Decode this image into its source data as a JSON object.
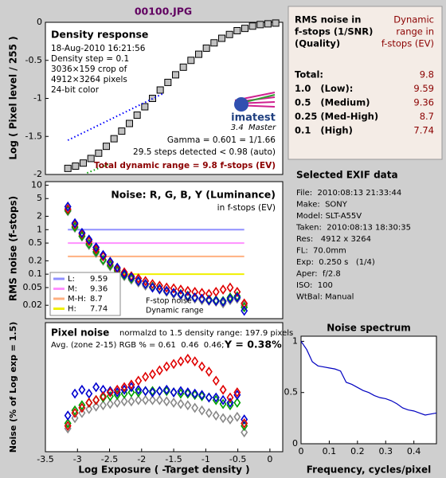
{
  "file_title": "00100.JPG",
  "chart_data": [
    {
      "type": "line",
      "title": "Density response",
      "ylabel": "Log ( Pixel level / 255 )",
      "annotations": [
        "18-Aug-2010 16:21:56",
        "Density step = 0.1",
        "3036×159 crop of",
        "4912×3264 pixels",
        "24-bit color",
        "Gamma = 0.601 = 1/1.66",
        "29.5 steps detected < 0.98 (auto)"
      ],
      "logo": "imatest",
      "logo_caption": "3.4  Master",
      "footer": "Total dynamic range = 9.8 f-stops (EV)",
      "xlim": [
        -3.5,
        0.2
      ],
      "ylim": [
        -2,
        0
      ],
      "yticks": [
        0,
        -0.5,
        -1,
        -1.5,
        -2
      ],
      "x": [
        -3.15,
        -3.03,
        -2.91,
        -2.79,
        -2.67,
        -2.55,
        -2.43,
        -2.31,
        -2.19,
        -2.07,
        -1.95,
        -1.83,
        -1.71,
        -1.59,
        -1.47,
        -1.35,
        -1.23,
        -1.11,
        -0.99,
        -0.87,
        -0.75,
        -0.63,
        -0.51,
        -0.39,
        -0.27,
        -0.15,
        -0.03,
        0.09
      ],
      "series": [
        {
          "color": "#c0c0c0",
          "marker": "square",
          "values": [
            -1.92,
            -1.89,
            -1.85,
            -1.79,
            -1.72,
            -1.63,
            -1.53,
            -1.43,
            -1.33,
            -1.22,
            -1.11,
            -1.0,
            -0.89,
            -0.79,
            -0.69,
            -0.59,
            -0.5,
            -0.42,
            -0.34,
            -0.27,
            -0.21,
            -0.16,
            -0.11,
            -0.08,
            -0.05,
            -0.03,
            -0.02,
            -0.01
          ]
        },
        {
          "color": "#0000ff",
          "line": "dotted",
          "x": [
            -3.15,
            -1.65
          ],
          "values": [
            -1.55,
            -0.93
          ]
        },
        {
          "color": "#00a000",
          "line": "dotted",
          "x": [
            -2.85,
            -2.5
          ],
          "values": [
            -1.98,
            -1.86
          ]
        }
      ]
    },
    {
      "type": "line",
      "title": "Noise: R, G, B, Y (Luminance)",
      "subtitle": "in f-stops (EV)",
      "ylabel": "RMS noise (f-stops)",
      "annotations": [
        "F-stop noise",
        "Dynamic range"
      ],
      "log_y": true,
      "xlim": [
        -3.5,
        0.2
      ],
      "ylim": [
        0.01,
        12
      ],
      "yticks": [
        10,
        5,
        2,
        1,
        0.5,
        0.2,
        0.1,
        0.05,
        0.02
      ],
      "x": [
        -3.15,
        -3.04,
        -2.93,
        -2.82,
        -2.71,
        -2.6,
        -2.49,
        -2.38,
        -2.27,
        -2.16,
        -2.05,
        -1.94,
        -1.83,
        -1.72,
        -1.61,
        -1.5,
        -1.39,
        -1.28,
        -1.17,
        -1.06,
        -0.95,
        -0.84,
        -0.73,
        -0.62,
        -0.51,
        -0.4
      ],
      "reference_lines": [
        {
          "name": "L:",
          "dynamic_range": "9.59",
          "value": 1,
          "color": "#9090ff"
        },
        {
          "name": "M:",
          "dynamic_range": "9.36",
          "value": 0.5,
          "color": "#ff90ff"
        },
        {
          "name": "M-H:",
          "dynamic_range": "8.7",
          "value": 0.25,
          "color": "#ffb080"
        },
        {
          "name": "H:",
          "dynamic_range": "7.74",
          "value": 0.1,
          "color": "#f0f000"
        }
      ],
      "series": [
        {
          "color": "#888888",
          "marker": "diamond",
          "values": [
            2.6,
            1.1,
            0.7,
            0.45,
            0.3,
            0.2,
            0.15,
            0.11,
            0.09,
            0.075,
            0.065,
            0.055,
            0.05,
            0.045,
            0.04,
            0.036,
            0.034,
            0.03,
            0.028,
            0.026,
            0.025,
            0.024,
            0.022,
            0.026,
            0.028,
            0.02
          ]
        },
        {
          "color": "#00a000",
          "marker": "diamond",
          "values": [
            2.7,
            1.15,
            0.72,
            0.48,
            0.32,
            0.21,
            0.16,
            0.12,
            0.095,
            0.08,
            0.07,
            0.06,
            0.052,
            0.047,
            0.042,
            0.038,
            0.036,
            0.033,
            0.03,
            0.028,
            0.027,
            0.026,
            0.025,
            0.03,
            0.032,
            0.018
          ]
        },
        {
          "color": "#e00000",
          "marker": "diamond",
          "values": [
            2.9,
            1.3,
            0.8,
            0.55,
            0.36,
            0.25,
            0.18,
            0.13,
            0.11,
            0.09,
            0.08,
            0.07,
            0.06,
            0.055,
            0.05,
            0.048,
            0.045,
            0.042,
            0.04,
            0.038,
            0.036,
            0.04,
            0.045,
            0.05,
            0.04,
            0.022
          ]
        },
        {
          "color": "#0000d0",
          "marker": "diamond",
          "values": [
            3.3,
            1.4,
            0.85,
            0.6,
            0.4,
            0.27,
            0.19,
            0.14,
            0.1,
            0.085,
            0.07,
            0.06,
            0.05,
            0.046,
            0.042,
            0.038,
            0.035,
            0.032,
            0.03,
            0.028,
            0.026,
            0.025,
            0.024,
            0.028,
            0.03,
            0.015
          ]
        }
      ]
    },
    {
      "type": "line",
      "title": "Pixel noise",
      "subtitle": "normalzd to 1.5 density range: 197.9 pixels",
      "annotations": [
        "Avg. (zone 2-15) RGB % = 0.61  0.46  0.46;",
        "Y = 0.38%"
      ],
      "ylabel": "Noise (% of Log exp = 1.5)",
      "xlabel": "Log Exposure ( -Target density )",
      "xlim": [
        -3.5,
        0.2
      ],
      "ylim": [
        0,
        1
      ],
      "xticks": [
        -3.5,
        -3,
        -2.5,
        -2,
        -1.5,
        -1,
        -0.5,
        0
      ],
      "x": [
        -3.15,
        -3.04,
        -2.93,
        -2.82,
        -2.71,
        -2.6,
        -2.49,
        -2.38,
        -2.27,
        -2.16,
        -2.05,
        -1.94,
        -1.83,
        -1.72,
        -1.61,
        -1.5,
        -1.39,
        -1.28,
        -1.17,
        -1.06,
        -0.95,
        -0.84,
        -0.73,
        -0.62,
        -0.51,
        -0.4
      ],
      "series": [
        {
          "color": "#888888",
          "marker": "diamond",
          "values": [
            0.18,
            0.26,
            0.3,
            0.33,
            0.35,
            0.36,
            0.37,
            0.38,
            0.39,
            0.39,
            0.4,
            0.4,
            0.4,
            0.4,
            0.39,
            0.38,
            0.37,
            0.36,
            0.34,
            0.32,
            0.3,
            0.28,
            0.26,
            0.25,
            0.27,
            0.15
          ]
        },
        {
          "color": "#00a000",
          "marker": "diamond",
          "values": [
            0.22,
            0.32,
            0.36,
            0.38,
            0.4,
            0.42,
            0.43,
            0.44,
            0.45,
            0.46,
            0.46,
            0.47,
            0.47,
            0.47,
            0.47,
            0.46,
            0.45,
            0.45,
            0.44,
            0.43,
            0.42,
            0.4,
            0.37,
            0.36,
            0.38,
            0.2
          ]
        },
        {
          "color": "#0000d0",
          "marker": "diamond",
          "values": [
            0.28,
            0.45,
            0.48,
            0.45,
            0.5,
            0.48,
            0.47,
            0.46,
            0.48,
            0.5,
            0.48,
            0.47,
            0.46,
            0.47,
            0.48,
            0.46,
            0.47,
            0.46,
            0.45,
            0.44,
            0.42,
            0.42,
            0.4,
            0.38,
            0.44,
            0.25
          ]
        },
        {
          "color": "#e00000",
          "marker": "diamond",
          "values": [
            0.2,
            0.3,
            0.34,
            0.38,
            0.4,
            0.43,
            0.46,
            0.48,
            0.5,
            0.52,
            0.55,
            0.58,
            0.6,
            0.63,
            0.66,
            0.68,
            0.7,
            0.72,
            0.7,
            0.66,
            0.62,
            0.55,
            0.48,
            0.42,
            0.46,
            0.22
          ]
        }
      ]
    },
    {
      "type": "line",
      "title": "Noise spectrum",
      "xlabel": "Frequency, cycles/pixel",
      "annotations": [
        "ISO:",
        "100",
        "Exp:",
        "0.250 s",
        "(1/4)"
      ],
      "xlim": [
        0,
        0.48
      ],
      "ylim": [
        0,
        1.05
      ],
      "xticks": [
        0,
        0.1,
        0.2,
        0.3,
        0.4
      ],
      "yticks": [
        0,
        0.5,
        1
      ],
      "x": [
        0,
        0.02,
        0.04,
        0.06,
        0.08,
        0.1,
        0.12,
        0.14,
        0.16,
        0.18,
        0.2,
        0.22,
        0.24,
        0.26,
        0.28,
        0.3,
        0.32,
        0.34,
        0.36,
        0.38,
        0.4,
        0.42,
        0.44,
        0.46,
        0.48
      ],
      "series": [
        {
          "color": "#0000c0",
          "line": "solid",
          "values": [
            1.0,
            0.92,
            0.8,
            0.76,
            0.75,
            0.74,
            0.73,
            0.71,
            0.6,
            0.58,
            0.55,
            0.52,
            0.5,
            0.47,
            0.45,
            0.44,
            0.42,
            0.39,
            0.35,
            0.33,
            0.32,
            0.3,
            0.28,
            0.29,
            0.3
          ]
        }
      ]
    }
  ],
  "rms_table": {
    "header_left": [
      "RMS noise in",
      "f-stops (1/SNR)",
      "(Quality)"
    ],
    "header_right": [
      "Dynamic",
      "range in",
      "f-stops (EV)"
    ],
    "rows": [
      [
        "Total:",
        "9.8"
      ],
      [
        "1.0   (Low):",
        "9.59"
      ],
      [
        "0.5   (Medium)",
        "9.36"
      ],
      [
        "0.25 (Med-High)",
        "8.7"
      ],
      [
        "0.1   (High)",
        "7.74"
      ]
    ]
  },
  "exif": {
    "title": "Selected EXIF data",
    "lines": [
      "File:  2010:08:13 21:33:44",
      "Make:  SONY",
      "Model: SLT-A55V",
      "Taken:  2010:08:13 18:30:35",
      "Res:   4912 x 3264",
      "FL:  70.0mm",
      "Exp:  0.250 s   (1/4)",
      "Aper:  f/2.8",
      "ISO:  100",
      "WtBal: Manual"
    ]
  }
}
